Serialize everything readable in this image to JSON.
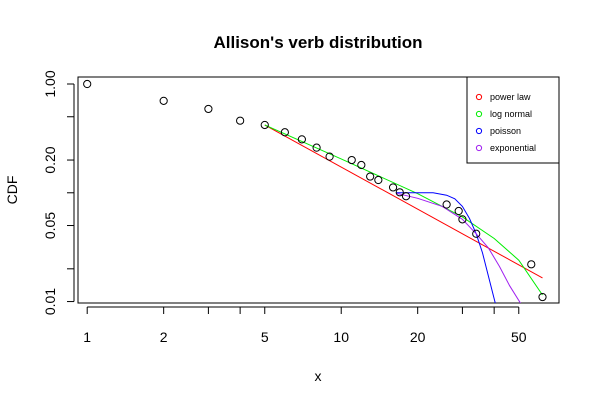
{
  "chart_data": {
    "type": "scatter",
    "title": "Allison's verb distribution",
    "xlabel": "x",
    "ylabel": "CDF",
    "log_x": true,
    "log_y": true,
    "xlim": [
      0.92,
      72
    ],
    "ylim": [
      0.0097,
      1.16
    ],
    "x_ticks": [
      {
        "value": 1,
        "label": "1"
      },
      {
        "value": 2,
        "label": "2"
      },
      {
        "value": 5,
        "label": "5"
      },
      {
        "value": 10,
        "label": "10"
      },
      {
        "value": 20,
        "label": "20"
      },
      {
        "value": 50,
        "label": "50"
      }
    ],
    "x_minor_ticks": [
      3,
      4,
      30,
      40
    ],
    "y_ticks": [
      {
        "value": 1.0,
        "label": "1.00"
      },
      {
        "value": 0.2,
        "label": "0.20"
      },
      {
        "value": 0.05,
        "label": "0.05"
      },
      {
        "value": 0.01,
        "label": "0.01"
      }
    ],
    "y_minor_ticks": [
      0.5,
      0.1,
      0.02
    ],
    "points": [
      [
        1,
        1.0
      ],
      [
        2,
        0.7
      ],
      [
        3,
        0.59
      ],
      [
        4,
        0.46
      ],
      [
        5,
        0.42
      ],
      [
        6,
        0.36
      ],
      [
        7,
        0.31
      ],
      [
        8,
        0.26
      ],
      [
        9,
        0.215
      ],
      [
        11,
        0.2
      ],
      [
        12,
        0.18
      ],
      [
        13,
        0.141
      ],
      [
        14,
        0.131
      ],
      [
        16,
        0.112
      ],
      [
        17,
        0.101
      ],
      [
        18,
        0.093
      ],
      [
        26,
        0.078
      ],
      [
        29,
        0.068
      ],
      [
        30,
        0.057
      ],
      [
        34,
        0.042
      ],
      [
        56,
        0.022
      ],
      [
        62,
        0.011
      ]
    ],
    "series": [
      {
        "name": "power law",
        "color": "#ff0000",
        "x": [
          5,
          62
        ],
        "y": [
          0.42,
          0.0165
        ]
      },
      {
        "name": "log normal",
        "color": "#00ee00",
        "x": [
          5,
          10,
          20,
          30,
          40,
          50,
          62
        ],
        "y": [
          0.42,
          0.205,
          0.098,
          0.06,
          0.038,
          0.024,
          0.0115
        ]
      },
      {
        "name": "poisson",
        "color": "#0000ff",
        "x": [
          16.5,
          18,
          20,
          23,
          26,
          28,
          30,
          32,
          34,
          36,
          38,
          40.5
        ],
        "y": [
          0.1,
          0.1,
          0.1,
          0.1,
          0.095,
          0.088,
          0.075,
          0.058,
          0.042,
          0.028,
          0.017,
          0.0095
        ]
      },
      {
        "name": "exponential",
        "color": "#a020f0",
        "x": [
          16.5,
          20,
          25,
          30,
          34,
          38,
          42,
          46,
          51
        ],
        "y": [
          0.099,
          0.089,
          0.075,
          0.057,
          0.042,
          0.031,
          0.021,
          0.014,
          0.0095
        ]
      }
    ],
    "legend": {
      "position": "top-right",
      "entries": [
        {
          "label": "power law",
          "color": "#ff0000"
        },
        {
          "label": "log normal",
          "color": "#00ee00"
        },
        {
          "label": "poisson",
          "color": "#0000ff"
        },
        {
          "label": "exponential",
          "color": "#a020f0"
        }
      ]
    }
  }
}
